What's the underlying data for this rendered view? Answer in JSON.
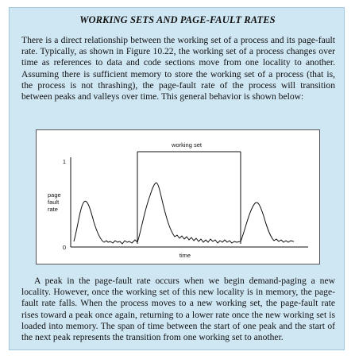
{
  "sidebar": {
    "title": "WORKING SETS AND PAGE-FAULT RATES",
    "intro": "There is a direct relationship between the working set of a process and its page-fault rate. Typically, as shown in Figure 10.22, the working set of a process changes over time as references to data and code sections move from one locality to another. Assuming there is sufficient memory to store the working set of a process (that is, the process is not thrashing), the page-fault rate of the process will transition between peaks and valleys over time. This general behavior is shown below:",
    "conclusion": "A peak in the page-fault rate occurs when we begin demand-paging a new locality. However, once the working set of this new locality is in memory, the page-fault rate falls. When the process moves to a new working set, the page-fault rate rises toward a peak once again, returning to a lower rate once the new working set is loaded into memory. The span of time between the start of one peak and the start of the next peak represents the transition from one working set to another."
  },
  "figure": {
    "working_set_label": "working set",
    "y_axis_label": "page fault rate",
    "y_tick_top": "1",
    "y_tick_bottom": "0",
    "x_axis_label": "time",
    "colors": {
      "background": "#cfe6f3",
      "line": "#111111"
    }
  }
}
